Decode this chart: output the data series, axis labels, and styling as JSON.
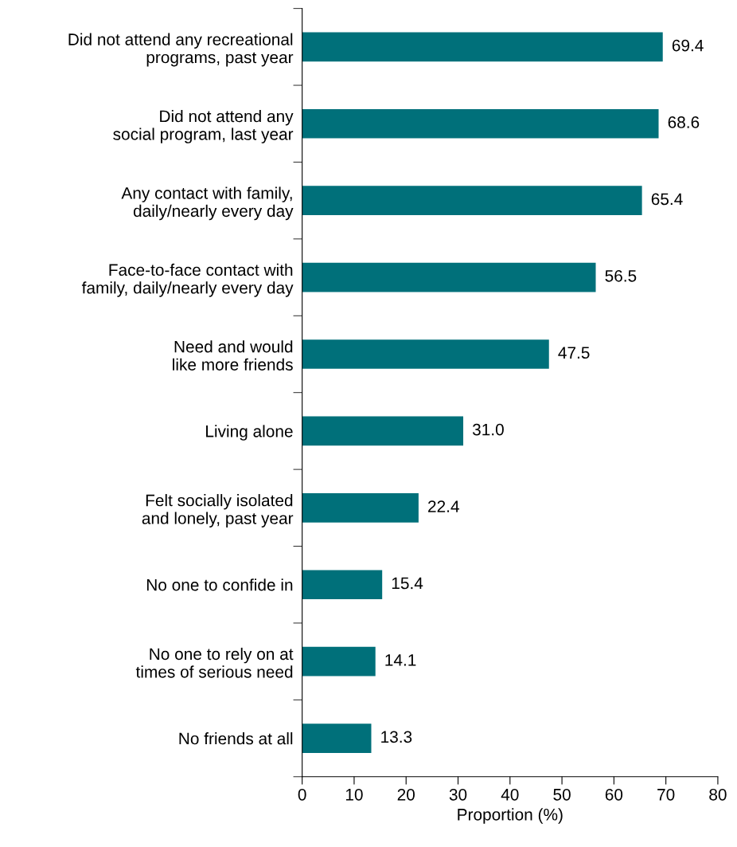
{
  "chart_data": {
    "type": "bar",
    "orientation": "horizontal",
    "categories": [
      "Did not attend any recreational\nprograms, past year",
      "Did not attend any\nsocial program, last year",
      "Any contact with family,\ndaily/nearly every day",
      "Face-to-face contact with\nfamily, daily/nearly every day",
      "Need and would\nlike more friends",
      "Living alone",
      "Felt socially isolated\nand lonely, past year",
      "No one to confide in",
      "No one to rely on at\ntimes of serious need",
      "No friends at all"
    ],
    "values": [
      69.4,
      68.6,
      65.4,
      56.5,
      47.5,
      31.0,
      22.4,
      15.4,
      14.1,
      13.3
    ],
    "value_labels": [
      "69.4",
      "68.6",
      "65.4",
      "56.5",
      "47.5",
      "31.0",
      "22.4",
      "15.4",
      "14.1",
      "13.3"
    ],
    "color": "#00707a",
    "xlabel": "Proportion (%)",
    "xlim": [
      0,
      80
    ],
    "xticks": [
      0,
      10,
      20,
      30,
      40,
      50,
      60,
      70,
      80
    ],
    "grid": false
  }
}
